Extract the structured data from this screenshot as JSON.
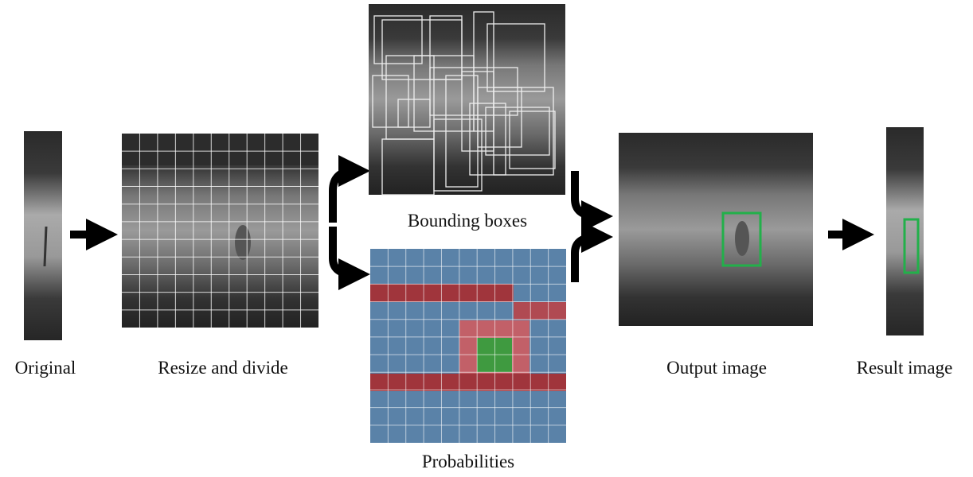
{
  "nodes": [
    {
      "label": "Original"
    },
    {
      "label": "Resize and divide"
    },
    {
      "label": "Bounding boxes"
    },
    {
      "label": "Probabilities"
    },
    {
      "label": "Output image"
    },
    {
      "label": "Result image"
    }
  ]
}
